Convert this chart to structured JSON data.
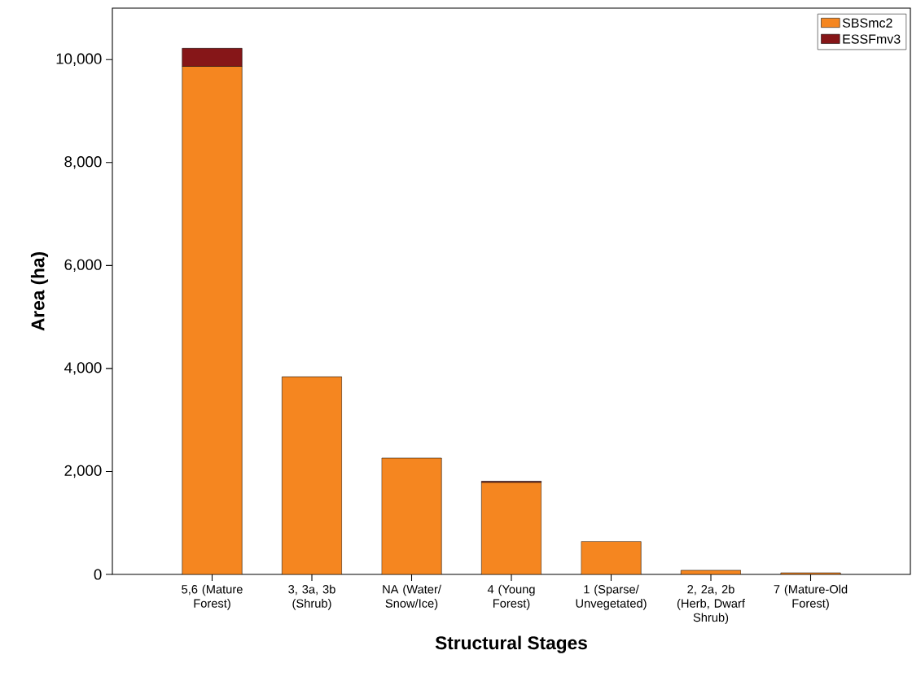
{
  "chart_data": {
    "type": "bar",
    "stacked": true,
    "xlabel": "Structural Stages",
    "ylabel": "Area (ha)",
    "categories": [
      "5,6 (Mature Forest)",
      "3, 3a, 3b (Shrub)",
      "NA (Water/ Snow/Ice)",
      "4 (Young Forest)",
      "1 (Sparse/ Unvegetated)",
      "2, 2a, 2b (Herb, Dwarf Shrub)",
      "7 (Mature-Old Forest)"
    ],
    "series": [
      {
        "name": "SBSmc2",
        "color": "#f58620",
        "values": [
          9870,
          3840,
          2260,
          1790,
          640,
          80,
          30
        ]
      },
      {
        "name": "ESSFmv3",
        "color": "#861618",
        "values": [
          350,
          null,
          null,
          20,
          null,
          null,
          null
        ]
      }
    ],
    "ylim": [
      0,
      11000
    ],
    "yticks": [
      0,
      {
        "value": 2000,
        "label": "2,000"
      },
      {
        "value": 4000,
        "label": "4,000"
      },
      {
        "value": 6000,
        "label": "6,000"
      },
      {
        "value": 8000,
        "label": "8,000"
      },
      {
        "value": 10000,
        "label": "10,000"
      }
    ],
    "legend": "top right",
    "grid": false
  }
}
